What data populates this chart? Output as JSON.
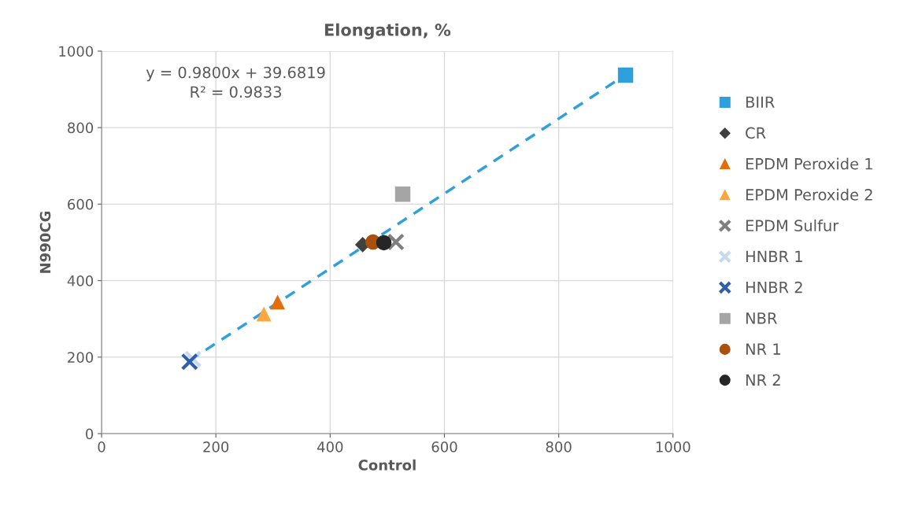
{
  "chart_data": {
    "type": "scatter",
    "title": "Elongation, %",
    "xlabel": "Control",
    "ylabel": "N990CG",
    "xlim": [
      0,
      1000
    ],
    "ylim": [
      0,
      1000
    ],
    "xticks": [
      0,
      200,
      400,
      600,
      800,
      1000
    ],
    "yticks": [
      0,
      200,
      400,
      600,
      800,
      1000
    ],
    "grid": true,
    "legend": "right",
    "annotations": [
      "y = 0.9800x + 39.6819\nR² = 0.9833"
    ],
    "series": [
      {
        "name": "BIIR",
        "color": "#2ea1dc",
        "marker": "square",
        "x": [
          917
        ],
        "values": [
          937
        ]
      },
      {
        "name": "CR",
        "color": "#404040",
        "marker": "diamond",
        "x": [
          457
        ],
        "values": [
          494
        ]
      },
      {
        "name": "EPDM Peroxide 1",
        "color": "#e46c0a",
        "marker": "triangle",
        "x": [
          308
        ],
        "values": [
          343
        ]
      },
      {
        "name": "EPDM Peroxide 2",
        "color": "#f9a73e",
        "marker": "triangle",
        "x": [
          284
        ],
        "values": [
          312
        ]
      },
      {
        "name": "EPDM Sulfur",
        "color": "#7f7f7f",
        "marker": "cross",
        "x": [
          515
        ],
        "values": [
          501
        ]
      },
      {
        "name": "HNBR 1",
        "color": "#c5d9f1",
        "marker": "cross",
        "x": [
          160
        ],
        "values": [
          195
        ]
      },
      {
        "name": "HNBR 2",
        "color": "#2e5fac",
        "marker": "cross",
        "x": [
          154
        ],
        "values": [
          188
        ]
      },
      {
        "name": "NBR",
        "color": "#a5a5a5",
        "marker": "square",
        "x": [
          527
        ],
        "values": [
          626
        ]
      },
      {
        "name": "NR 1",
        "color": "#a9500c",
        "marker": "circle",
        "x": [
          475
        ],
        "values": [
          501
        ]
      },
      {
        "name": "NR 2",
        "color": "#262626",
        "marker": "circle",
        "x": [
          494
        ],
        "values": [
          499
        ]
      },
      {
        "type": "line",
        "color": "#2ea1dc",
        "line_style": "dashed",
        "marker": "none",
        "x": [
          154,
          917
        ],
        "values": [
          191,
          938
        ]
      }
    ]
  }
}
